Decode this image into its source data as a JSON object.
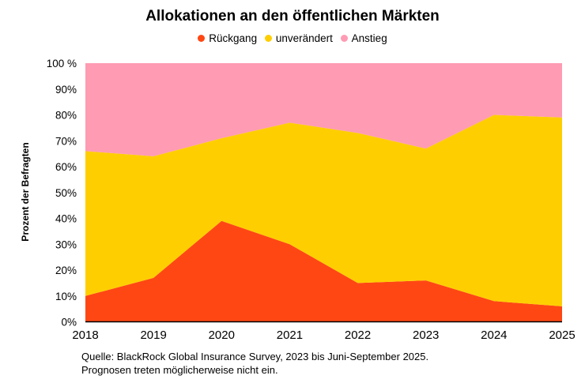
{
  "chart_data": {
    "type": "area",
    "stacked": true,
    "title": "Allokationen an den öffentlichen Märkten",
    "ylabel": "Prozent der Befragten",
    "xlabel": "",
    "categories": [
      "2018",
      "2019",
      "2020",
      "2021",
      "2022",
      "2023",
      "2024",
      "2025"
    ],
    "series": [
      {
        "name": "Rückgang",
        "color": "#ff4713",
        "values": [
          10,
          17,
          39,
          30,
          15,
          16,
          8,
          6
        ]
      },
      {
        "name": "unverändert",
        "color": "#ffce00",
        "values": [
          56,
          47,
          32,
          47,
          58,
          51,
          72,
          73
        ]
      },
      {
        "name": "Anstieg",
        "color": "#ff9bb3",
        "values": [
          34,
          36,
          29,
          23,
          27,
          33,
          20,
          21
        ]
      }
    ],
    "ylim": [
      0,
      100
    ],
    "yticks": [
      "0%",
      "10%",
      "20%",
      "30%",
      "40%",
      "50%",
      "60%",
      "70%",
      "80%",
      "90%",
      "100 %"
    ],
    "grid": false,
    "legend_position": "top"
  },
  "source": {
    "line1": "Quelle: BlackRock Global Insurance Survey, 2023 bis Juni-September 2025.",
    "line2": "Prognosen treten möglicherweise nicht ein."
  }
}
